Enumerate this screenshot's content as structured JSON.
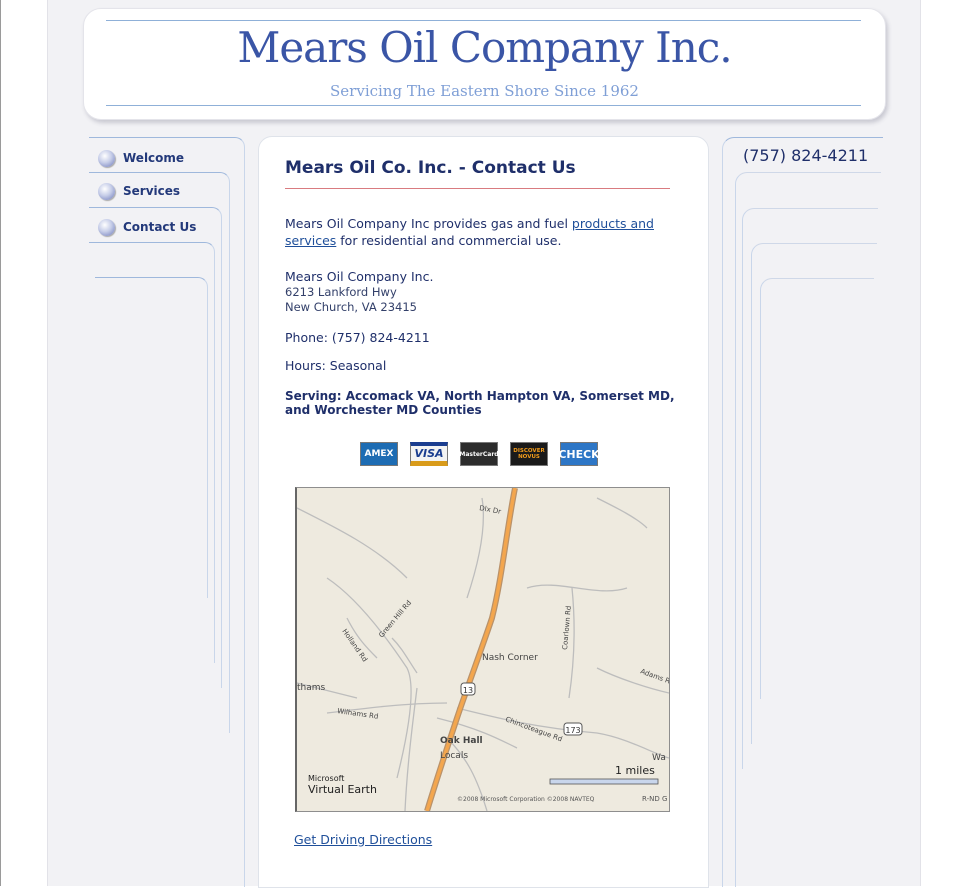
{
  "header": {
    "title": "Mears Oil Company Inc.",
    "tagline": "Servicing The Eastern Shore Since 1962"
  },
  "nav": {
    "items": [
      {
        "label": "Welcome"
      },
      {
        "label": "Services"
      },
      {
        "label": "Contact Us"
      }
    ]
  },
  "right": {
    "phone": "(757) 824-4211"
  },
  "main": {
    "title": "Mears Oil Co. Inc. - Contact Us",
    "intro_company": "Mears Oil Company Inc",
    "intro_mid": " provides gas and fuel ",
    "intro_link": "products and services",
    "intro_end": " for residential and commercial use.",
    "company_name": "Mears Oil Company Inc.",
    "address_line1": "6213 Lankford Hwy",
    "address_line2": "New Church, VA 23415",
    "phone": "Phone: (757) 824-4211",
    "hours": "Hours: Seasonal",
    "serving": "Serving: Accomack VA, North Hampton VA, Somerset MD, and Worchester MD Counties",
    "payment_cards": [
      "AMEX",
      "VISA",
      "MasterCard",
      "DISCOVER NOVUS",
      "CHECK"
    ],
    "directions_link": "Get Driving Directions"
  },
  "map": {
    "labels": {
      "road1": "Holland Rd",
      "road2": "Green Hill Rd",
      "road3": "Wilhams Rd",
      "road4": "Chincoteague Rd",
      "road5": "Coarlown Rd",
      "road6": "Adams Rd",
      "place1": "Nash Corner",
      "place2": "Oak Hall",
      "place3": "Locals",
      "place4": "thams",
      "route13": "13",
      "route173": "173",
      "scale": "1 miles",
      "brand1": "Microsoft",
      "brand2": "Virtual Earth",
      "copyright": "©2008 Microsoft Corporation  ©2008 NAVTEQ",
      "edge1": "Wa",
      "edge2": "Dlx Dr",
      "edge3": "R-ND G"
    }
  }
}
